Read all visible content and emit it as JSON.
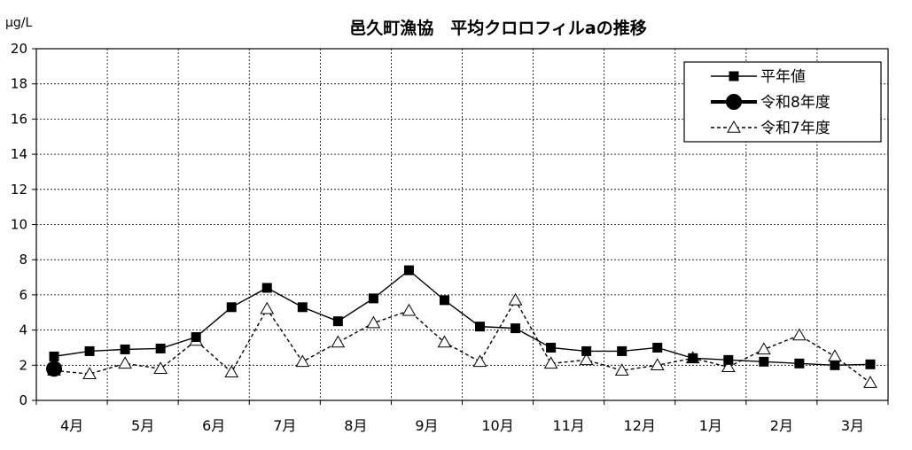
{
  "chart_data": {
    "type": "line",
    "title": "邑久町漁協　平均クロロフィルaの推移",
    "unit": "μg/L",
    "ylim": [
      0,
      20
    ],
    "yticks": [
      0,
      2,
      4,
      6,
      8,
      10,
      12,
      14,
      16,
      18,
      20
    ],
    "month_labels": [
      "4月",
      "5月",
      "6月",
      "7月",
      "8月",
      "9月",
      "10月",
      "11月",
      "12月",
      "1月",
      "2月",
      "3月"
    ],
    "grid": true,
    "legend_position": "top-right",
    "series": [
      {
        "name": "平年値",
        "style": "solid-square",
        "color": "#000000",
        "values": [
          2.5,
          2.8,
          2.9,
          2.95,
          3.6,
          5.3,
          6.4,
          5.3,
          4.5,
          5.8,
          7.4,
          5.7,
          4.2,
          4.1,
          3.0,
          2.8,
          2.8,
          3.0,
          2.4,
          2.3,
          2.2,
          2.1,
          2.0,
          2.05
        ]
      },
      {
        "name": "令和8年度",
        "style": "bold-circle",
        "color": "#000000",
        "values": [
          1.8
        ]
      },
      {
        "name": "令和7年度",
        "style": "dashed-triangle",
        "color": "#000000",
        "values": [
          1.7,
          1.5,
          2.1,
          1.8,
          3.4,
          1.6,
          5.2,
          2.2,
          3.3,
          4.4,
          5.1,
          3.3,
          2.2,
          5.7,
          2.1,
          2.3,
          1.7,
          2.0,
          2.4,
          1.9,
          2.9,
          3.7,
          2.5,
          1.0
        ]
      }
    ]
  }
}
